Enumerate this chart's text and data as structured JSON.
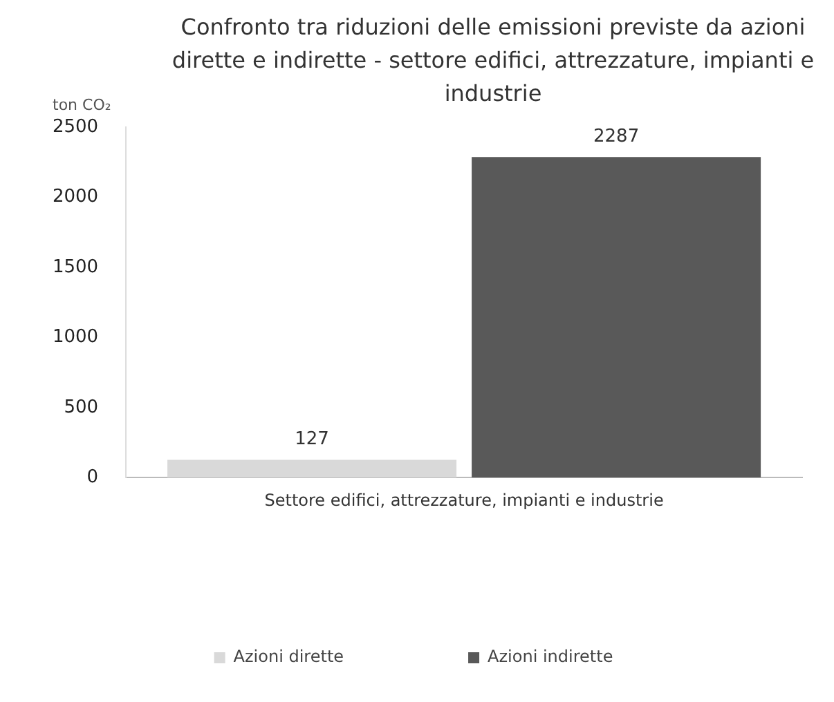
{
  "chart_data": {
    "type": "bar",
    "title": "Confronto tra riduzioni delle emissioni previste da azioni dirette e indirette - settore edifici, attrezzature, impianti e industrie",
    "ylabel": "ton CO₂",
    "categories": [
      "Settore edifici, attrezzature, impianti e industrie"
    ],
    "series": [
      {
        "name": "Azioni dirette",
        "color": "#d9d9d9",
        "values": [
          127
        ]
      },
      {
        "name": "Azioni indirette",
        "color": "#595959",
        "values": [
          2287
        ]
      }
    ],
    "ylim": [
      0,
      2500
    ],
    "yticks": [
      0,
      500,
      1000,
      1500,
      2000,
      2500
    ],
    "grid": false,
    "legend": "bottom",
    "data_labels": true
  }
}
